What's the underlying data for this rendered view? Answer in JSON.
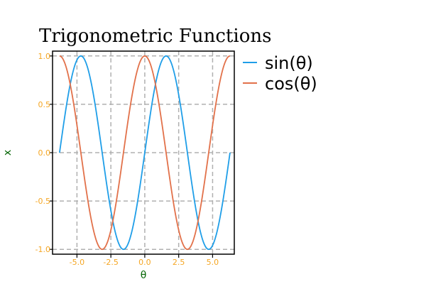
{
  "chart_data": {
    "type": "line",
    "title": "Trigonometric Functions",
    "xlabel": "θ",
    "ylabel": "x",
    "xlim": [
      -6.8,
      6.6
    ],
    "ylim": [
      -1.05,
      1.05
    ],
    "x_ticks": [
      -5.0,
      -2.5,
      0.0,
      2.5,
      5.0
    ],
    "x_tick_labels": [
      "-5.0",
      "-2.5",
      "0.0",
      "2.5",
      "5.0"
    ],
    "y_ticks": [
      1.0,
      0.5,
      0.0,
      -0.5,
      -1.0
    ],
    "y_tick_labels": [
      "1.0",
      "0.5",
      "0.0",
      "-0.5",
      "-1.0"
    ],
    "grid": true,
    "grid_style": "dashed",
    "legend_position": "outside-right",
    "tick_label_color": "#f5a623",
    "axis_label_color": "#006400",
    "series": [
      {
        "name": "sin(θ)",
        "function": "sin",
        "color": "#1f9ee8",
        "x": [
          -6.2832,
          -5.8905,
          -5.4978,
          -5.1051,
          -4.7124,
          -4.3197,
          -3.927,
          -3.5343,
          -3.1416,
          -2.7489,
          -2.3562,
          -1.9635,
          -1.5708,
          -1.1781,
          -0.7854,
          -0.3927,
          0.0,
          0.3927,
          0.7854,
          1.1781,
          1.5708,
          1.9635,
          2.3562,
          2.7489,
          3.1416,
          3.5343,
          3.927,
          4.3197,
          4.7124,
          5.1051,
          5.4978,
          5.8905,
          6.2832
        ],
        "values": [
          0.0,
          0.3827,
          0.7071,
          0.9239,
          1.0,
          0.9239,
          0.7071,
          0.3827,
          0.0,
          -0.3827,
          -0.7071,
          -0.9239,
          -1.0,
          -0.9239,
          -0.7071,
          -0.3827,
          0.0,
          0.3827,
          0.7071,
          0.9239,
          1.0,
          0.9239,
          0.7071,
          0.3827,
          0.0,
          -0.3827,
          -0.7071,
          -0.9239,
          -1.0,
          -0.9239,
          -0.7071,
          -0.3827,
          0.0
        ]
      },
      {
        "name": "cos(θ)",
        "function": "cos",
        "color": "#e2714a",
        "x": [
          -6.2832,
          -5.8905,
          -5.4978,
          -5.1051,
          -4.7124,
          -4.3197,
          -3.927,
          -3.5343,
          -3.1416,
          -2.7489,
          -2.3562,
          -1.9635,
          -1.5708,
          -1.1781,
          -0.7854,
          -0.3927,
          0.0,
          0.3927,
          0.7854,
          1.1781,
          1.5708,
          1.9635,
          2.3562,
          2.7489,
          3.1416,
          3.5343,
          3.927,
          4.3197,
          4.7124,
          5.1051,
          5.4978,
          5.8905,
          6.2832
        ],
        "values": [
          1.0,
          0.9239,
          0.7071,
          0.3827,
          0.0,
          -0.3827,
          -0.7071,
          -0.9239,
          -1.0,
          -0.9239,
          -0.7071,
          -0.3827,
          0.0,
          0.3827,
          0.7071,
          0.9239,
          1.0,
          0.9239,
          0.7071,
          0.3827,
          0.0,
          -0.3827,
          -0.7071,
          -0.9239,
          -1.0,
          -0.9239,
          -0.7071,
          -0.3827,
          0.0,
          0.3827,
          0.7071,
          0.9239,
          1.0
        ]
      }
    ]
  }
}
